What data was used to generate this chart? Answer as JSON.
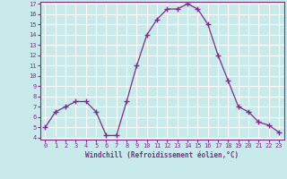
{
  "hours": [
    0,
    1,
    2,
    3,
    4,
    5,
    6,
    7,
    8,
    9,
    10,
    11,
    12,
    13,
    14,
    15,
    16,
    17,
    18,
    19,
    20,
    21,
    22,
    23
  ],
  "values": [
    5,
    6.5,
    7,
    7.5,
    7.5,
    6.5,
    4.2,
    4.2,
    7.5,
    11,
    14,
    15.5,
    16.5,
    16.5,
    17,
    16.5,
    15,
    12,
    9.5,
    7,
    6.5,
    5.5,
    5.2,
    4.5
  ],
  "line_color": "#7b2d8b",
  "marker": "+",
  "marker_size": 5,
  "bg_color": "#c8eaea",
  "grid_color": "#ffffff",
  "xlabel": "Windchill (Refroidissement éolien,°C)",
  "xlabel_color": "#7b2d8b",
  "tick_color": "#7b2d8b",
  "ylim": [
    4,
    17
  ],
  "xlim": [
    -0.5,
    23.5
  ],
  "yticks": [
    4,
    5,
    6,
    7,
    8,
    9,
    10,
    11,
    12,
    13,
    14,
    15,
    16,
    17
  ],
  "xticks": [
    0,
    1,
    2,
    3,
    4,
    5,
    6,
    7,
    8,
    9,
    10,
    11,
    12,
    13,
    14,
    15,
    16,
    17,
    18,
    19,
    20,
    21,
    22,
    23
  ]
}
